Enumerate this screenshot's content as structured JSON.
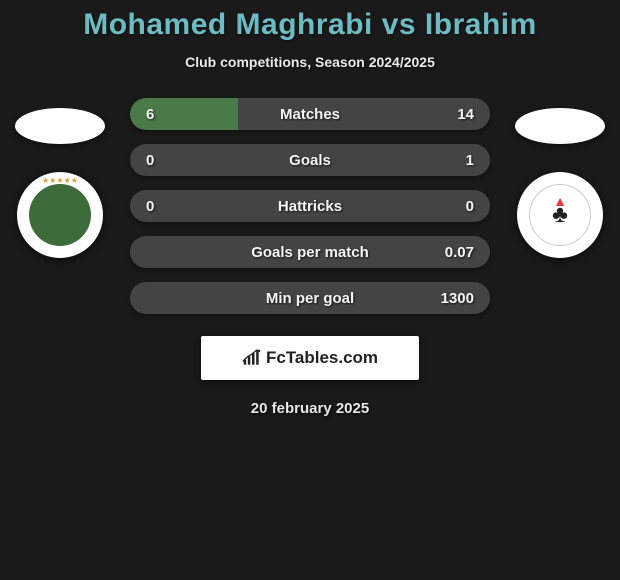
{
  "title": "Mohamed Maghrabi vs Ibrahim",
  "title_color": "#6dbcc4",
  "subtitle": "Club competitions, Season 2024/2025",
  "background_color": "#1a1a1a",
  "left_player": {
    "country_flag_bg": "#ffffff",
    "club_badge_bg": "#3d6b3a",
    "stars_color": "#d4a03a"
  },
  "right_player": {
    "country_flag_bg": "#ffffff",
    "club_badge_bg": "#ffffff",
    "flame_color": "#e63939"
  },
  "stats": [
    {
      "label": "Matches",
      "left_value": "6",
      "right_value": "14",
      "left_pct": 30,
      "right_pct": 70,
      "left_color": "#4a7a47",
      "right_color": "#444444"
    },
    {
      "label": "Goals",
      "left_value": "0",
      "right_value": "1",
      "left_pct": 0,
      "right_pct": 100,
      "left_color": "#4a7a47",
      "right_color": "#444444"
    },
    {
      "label": "Hattricks",
      "left_value": "0",
      "right_value": "0",
      "left_pct": 0,
      "right_pct": 0,
      "left_color": "#4a7a47",
      "right_color": "#444444"
    },
    {
      "label": "Goals per match",
      "left_value": "",
      "right_value": "0.07",
      "left_pct": 0,
      "right_pct": 100,
      "left_color": "#4a7a47",
      "right_color": "#444444"
    },
    {
      "label": "Min per goal",
      "left_value": "",
      "right_value": "1300",
      "left_pct": 0,
      "right_pct": 100,
      "left_color": "#4a7a47",
      "right_color": "#444444"
    }
  ],
  "bar_bg": "#444444",
  "bar_radius": 16,
  "stat_fontsize": 15,
  "brand": {
    "text": "FcTables.com",
    "bg": "#ffffff",
    "text_color": "#222222"
  },
  "date": "20 february 2025"
}
